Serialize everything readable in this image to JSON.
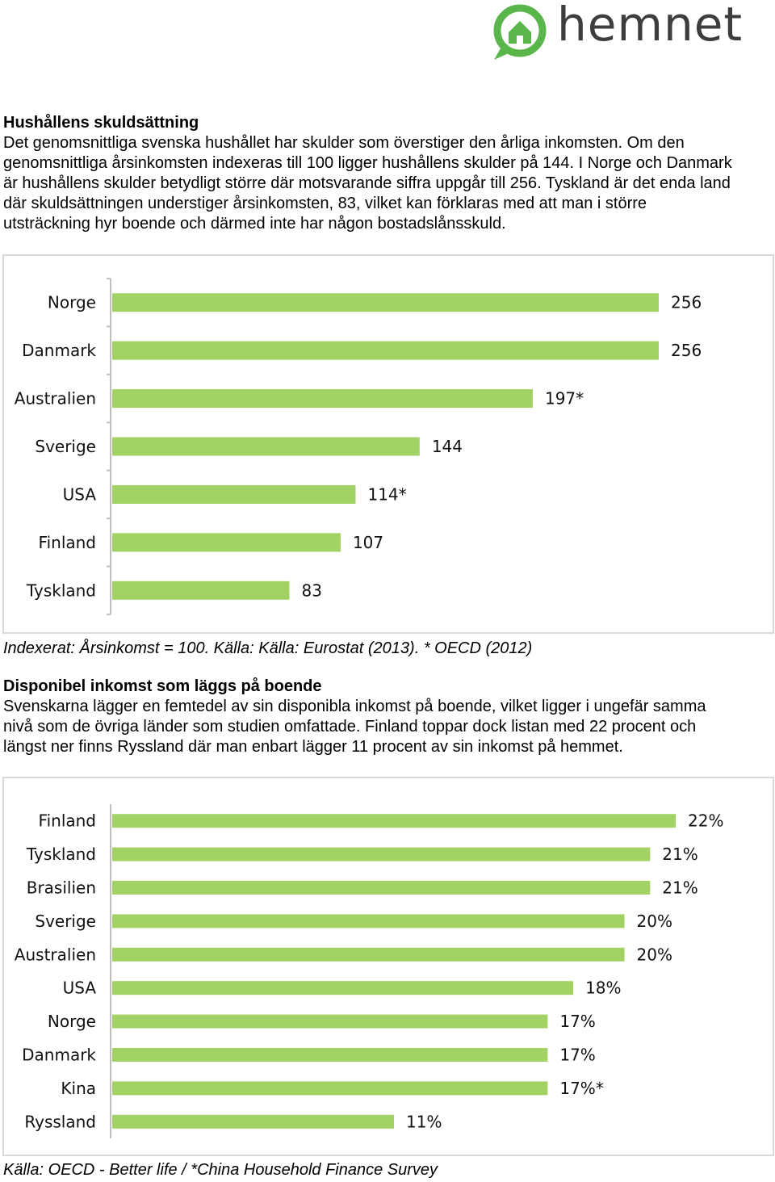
{
  "brand": {
    "name": "hemnet",
    "color": "#5ab64a",
    "text_color": "#3d3d3d",
    "icon": "house-speech-bubble-icon"
  },
  "section1": {
    "title": "Hushållens skuldsättning",
    "lines": [
      "Det genomsnittliga svenska hushållet har skulder som överstiger den årliga inkomsten. Om den",
      "genomsnittliga årsinkomsten indexeras till 100 ligger hushållens skulder på 144. I Norge och Danmark",
      "är hushållens skulder betydligt större där motsvarande siffra uppgår till 256. Tyskland är det enda land",
      "där skuldsättningen understiger årsinkomsten, 83, vilket kan förklaras med att man i större",
      "utsträckning hyr boende och därmed inte har någon bostadslånsskuld."
    ],
    "caption": "Indexerat: Årsinkomst = 100. Källa: Källa: Eurostat (2013). * OECD (2012)"
  },
  "section2": {
    "title": "Disponibel inkomst som läggs på boende",
    "lines": [
      "Svenskarna lägger en femtedel av sin disponibla inkomst på boende, vilket ligger i ungefär samma",
      "nivå som de övriga länder som studien omfattade. Finland toppar dock listan med 22 procent och",
      "längst ner finns Ryssland där man enbart lägger 11 procent av sin inkomst på hemmet."
    ],
    "caption": "Källa: OECD - Better life / *China Household Finance Survey"
  },
  "bar_color": "#a2d264",
  "chart_data": [
    {
      "type": "bar",
      "orientation": "horizontal",
      "categories": [
        "Norge",
        "Danmark",
        "Australien",
        "Sverige",
        "USA",
        "Finland",
        "Tyskland"
      ],
      "values": [
        256,
        256,
        197,
        144,
        114,
        107,
        83
      ],
      "data_labels": [
        "256",
        "256",
        "197*",
        "144",
        "114*",
        "107",
        "83"
      ],
      "xlim": [
        0,
        256
      ],
      "grid": false,
      "legend": "none"
    },
    {
      "type": "bar",
      "orientation": "horizontal",
      "categories": [
        "Finland",
        "Tyskland",
        "Brasilien",
        "Sverige",
        "Australien",
        "USA",
        "Norge",
        "Danmark",
        "Kina",
        "Ryssland"
      ],
      "values": [
        22,
        21,
        21,
        20,
        20,
        18,
        17,
        17,
        17,
        11
      ],
      "data_labels": [
        "22%",
        "21%",
        "21%",
        "20%",
        "20%",
        "18%",
        "17%",
        "17%",
        "17%*",
        "11%"
      ],
      "xlim": [
        0,
        22
      ],
      "grid": false,
      "legend": "none"
    }
  ]
}
